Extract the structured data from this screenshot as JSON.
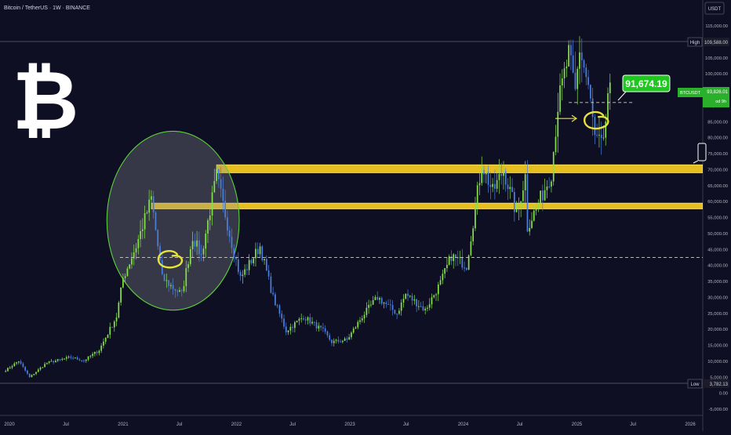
{
  "header": {
    "symbol_title": "Bitcoin / TetherUS · 1W · BINANCE"
  },
  "logo": {
    "glyph": "₿"
  },
  "price_axis": {
    "currency_label": "USDT",
    "ticks": [
      "115,000.00",
      "110,000.00",
      "105,000.00",
      "100,000.00",
      "95,000.00",
      "90,000.00",
      "85,000.00",
      "80,000.00",
      "75,000.00",
      "70,000.00",
      "65,000.00",
      "60,000.00",
      "55,000.00",
      "50,000.00",
      "45,000.00",
      "40,000.00",
      "35,000.00",
      "30,000.00",
      "25,000.00",
      "20,000.00",
      "15,000.00",
      "10,000.00",
      "5,000.00",
      "0.00",
      "-5,000.00"
    ]
  },
  "time_axis": {
    "ticks": [
      "2020",
      "Jul",
      "2021",
      "Jul",
      "2022",
      "Jul",
      "2023",
      "Jul",
      "2024",
      "Jul",
      "2025",
      "Jul",
      "2026"
    ]
  },
  "markers": {
    "high_label": "High",
    "high_value": "109,588.00",
    "low_label": "Low",
    "low_value": "3,782.13",
    "symbol_tag": "BTCUSDT",
    "last_price": "93,826.01",
    "countdown": "od 9h",
    "callout_value": "91,674.19"
  },
  "colors": {
    "background": "#0f0f23",
    "up_candle": "#86e04a",
    "down_candle": "#4a7fe0",
    "zone_fill": "#ffd21f",
    "highlight_ellipse": "#5ad23a",
    "callout_bg": "#1ec81e",
    "annotation": "#e8e23a"
  },
  "chart_data": {
    "type": "candlestick",
    "title": "Bitcoin / TetherUS · 1W · BINANCE",
    "xlabel": "",
    "ylabel": "USDT",
    "ylim": [
      -5000,
      115000
    ],
    "xlim": [
      "2020",
      "2026"
    ],
    "grid": false,
    "price_path": [
      {
        "date": "2019-12-30",
        "price": 7200
      },
      {
        "date": "2020-02-10",
        "price": 10100
      },
      {
        "date": "2020-03-16",
        "price": 5000
      },
      {
        "date": "2020-05-10",
        "price": 9500
      },
      {
        "date": "2020-07-27",
        "price": 11200
      },
      {
        "date": "2020-09-07",
        "price": 10200
      },
      {
        "date": "2020-10-26",
        "price": 13500
      },
      {
        "date": "2020-12-21",
        "price": 24000
      },
      {
        "date": "2021-01-11",
        "price": 36000
      },
      {
        "date": "2021-02-22",
        "price": 46000
      },
      {
        "date": "2021-04-12",
        "price": 61000
      },
      {
        "date": "2021-05-17",
        "price": 36000
      },
      {
        "date": "2021-06-21",
        "price": 33000
      },
      {
        "date": "2021-07-19",
        "price": 31000
      },
      {
        "date": "2021-08-23",
        "price": 49000
      },
      {
        "date": "2021-09-20",
        "price": 43000
      },
      {
        "date": "2021-11-08",
        "price": 68000
      },
      {
        "date": "2021-12-27",
        "price": 47000
      },
      {
        "date": "2022-01-24",
        "price": 36000
      },
      {
        "date": "2022-03-28",
        "price": 46000
      },
      {
        "date": "2022-05-09",
        "price": 30000
      },
      {
        "date": "2022-06-20",
        "price": 19500
      },
      {
        "date": "2022-08-15",
        "price": 24000
      },
      {
        "date": "2022-10-17",
        "price": 19500
      },
      {
        "date": "2022-11-14",
        "price": 16000
      },
      {
        "date": "2023-01-02",
        "price": 16700
      },
      {
        "date": "2023-02-20",
        "price": 24000
      },
      {
        "date": "2023-04-10",
        "price": 30000
      },
      {
        "date": "2023-06-12",
        "price": 25000
      },
      {
        "date": "2023-07-10",
        "price": 31000
      },
      {
        "date": "2023-09-11",
        "price": 26000
      },
      {
        "date": "2023-10-30",
        "price": 34500
      },
      {
        "date": "2023-12-04",
        "price": 43000
      },
      {
        "date": "2024-01-22",
        "price": 40000
      },
      {
        "date": "2024-03-11",
        "price": 72000
      },
      {
        "date": "2024-04-15",
        "price": 63000
      },
      {
        "date": "2024-05-20",
        "price": 70000
      },
      {
        "date": "2024-07-01",
        "price": 56000
      },
      {
        "date": "2024-07-29",
        "price": 68000
      },
      {
        "date": "2024-08-05",
        "price": 52000
      },
      {
        "date": "2024-09-30",
        "price": 64000
      },
      {
        "date": "2024-10-21",
        "price": 69000
      },
      {
        "date": "2024-11-11",
        "price": 90000
      },
      {
        "date": "2024-12-16",
        "price": 106000
      },
      {
        "date": "2025-01-06",
        "price": 94000
      },
      {
        "date": "2025-01-20",
        "price": 108000
      },
      {
        "date": "2025-02-17",
        "price": 96000
      },
      {
        "date": "2025-03-10",
        "price": 80000
      },
      {
        "date": "2025-04-07",
        "price": 77000
      },
      {
        "date": "2025-04-21",
        "price": 94000
      },
      {
        "date": "2025-04-28",
        "price": 93826
      }
    ],
    "high": 109588,
    "low": 3782.13,
    "last_price": 93826.01,
    "annotations": [
      {
        "kind": "zone",
        "from": "2021-04-12",
        "to": "2026-04-01",
        "low": 57700,
        "high": 59500
      },
      {
        "kind": "zone",
        "from": "2021-11-08",
        "to": "2026-04-01",
        "low": 69000,
        "high": 71500
      },
      {
        "kind": "dashed-line",
        "from": "2021-01-01",
        "to": "2026-04-01",
        "price": 42500
      },
      {
        "kind": "dashed-line",
        "from": "2024-12-16",
        "to": "2025-04-28",
        "price": 91000
      },
      {
        "kind": "ellipse",
        "from": "2020-11-20",
        "to": "2022-01-20",
        "low": 26000,
        "high": 82000
      },
      {
        "kind": "scribble",
        "date": "2021-06-14",
        "price": 42000
      },
      {
        "kind": "scribble",
        "date": "2025-03-17",
        "price": 85500
      }
    ]
  }
}
